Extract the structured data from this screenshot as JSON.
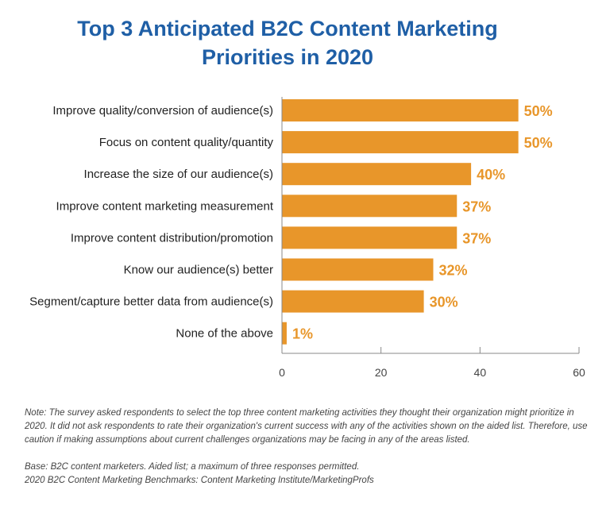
{
  "chart_data": {
    "type": "bar",
    "orientation": "horizontal",
    "title": "Top 3 Anticipated B2C Content Marketing Priorities in 2020",
    "title_lines": [
      "Top 3 Anticipated B2C Content Marketing",
      "Priorities in 2020"
    ],
    "categories": [
      "Improve quality/conversion of audience(s)",
      "Focus on content quality/quantity",
      "Increase the size of our audience(s)",
      "Improve content marketing measurement",
      "Improve content distribution/promotion",
      "Know our audience(s) better",
      "Segment/capture better data from audience(s)",
      "None of the above"
    ],
    "values": [
      50,
      50,
      40,
      37,
      37,
      32,
      30,
      1
    ],
    "data_labels": [
      "50%",
      "50%",
      "40%",
      "37%",
      "37%",
      "32%",
      "30%",
      "1%"
    ],
    "xlim": [
      0,
      60
    ],
    "xticks": [
      "0",
      "20",
      "40",
      "60"
    ],
    "grid": false,
    "bar_color": "#e8962a",
    "title_color": "#1f5fa6"
  },
  "notes": {
    "note": "Note: The survey asked respondents to select the top three content marketing activities they thought their organization might prioritize in 2020. It did not ask respondents to rate their organization's current success with any of the activities shown on the aided list. Therefore, use caution if making assumptions about current challenges organizations may be facing in any of the areas listed.",
    "base": "Base: B2C content marketers. Aided list; a maximum of three responses permitted.",
    "source": "2020 B2C Content Marketing Benchmarks: Content Marketing Institute/MarketingProfs"
  }
}
